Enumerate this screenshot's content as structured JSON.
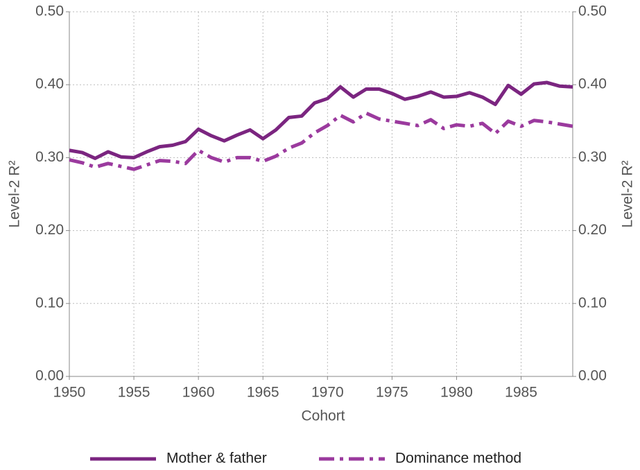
{
  "chart_data": {
    "type": "line",
    "x": [
      1950,
      1951,
      1952,
      1953,
      1954,
      1955,
      1956,
      1957,
      1958,
      1959,
      1960,
      1961,
      1962,
      1963,
      1964,
      1965,
      1966,
      1967,
      1968,
      1969,
      1970,
      1971,
      1972,
      1973,
      1974,
      1975,
      1976,
      1977,
      1978,
      1979,
      1980,
      1981,
      1982,
      1983,
      1984,
      1985,
      1986,
      1987,
      1988,
      1989
    ],
    "series": [
      {
        "name": "Mother & father",
        "color": "#7b2580",
        "dash": "solid",
        "values": [
          0.31,
          0.307,
          0.299,
          0.308,
          0.301,
          0.3,
          0.308,
          0.315,
          0.317,
          0.322,
          0.339,
          0.33,
          0.323,
          0.331,
          0.338,
          0.326,
          0.338,
          0.355,
          0.357,
          0.375,
          0.381,
          0.397,
          0.383,
          0.394,
          0.394,
          0.388,
          0.38,
          0.384,
          0.39,
          0.383,
          0.384,
          0.389,
          0.383,
          0.373,
          0.399,
          0.387,
          0.401,
          0.403,
          0.398,
          0.397
        ]
      },
      {
        "name": "Dominance method",
        "color": "#9b3a9e",
        "dash": "dashdot",
        "values": [
          0.297,
          0.293,
          0.287,
          0.292,
          0.288,
          0.284,
          0.29,
          0.296,
          0.295,
          0.292,
          0.31,
          0.3,
          0.294,
          0.3,
          0.3,
          0.295,
          0.302,
          0.313,
          0.32,
          0.334,
          0.344,
          0.358,
          0.349,
          0.361,
          0.353,
          0.35,
          0.347,
          0.344,
          0.352,
          0.34,
          0.345,
          0.343,
          0.347,
          0.333,
          0.35,
          0.343,
          0.351,
          0.349,
          0.346,
          0.343
        ]
      }
    ],
    "xlabel": "Cohort",
    "ylabel": "Level-2 R²",
    "y2label": "Level-2 R²",
    "xlim": [
      1950,
      1989
    ],
    "xticks": [
      1950,
      1955,
      1960,
      1965,
      1970,
      1975,
      1980,
      1985
    ],
    "ylim": [
      0,
      0.5
    ],
    "yticks": [
      {
        "value": 0,
        "label": "0.00"
      },
      {
        "value": 0.1,
        "label": "0.10"
      },
      {
        "value": 0.2,
        "label": "0.20"
      },
      {
        "value": 0.3,
        "label": "0.30"
      },
      {
        "value": 0.4,
        "label": "0.40"
      },
      {
        "value": 0.5,
        "label": "0.50"
      }
    ],
    "y2lim": [
      0,
      0.5
    ],
    "y2ticks": [
      {
        "value": 0,
        "label": "0.00"
      },
      {
        "value": 0.1,
        "label": "0.10"
      },
      {
        "value": 0.2,
        "label": "0.20"
      },
      {
        "value": 0.3,
        "label": "0.30"
      },
      {
        "value": 0.4,
        "label": "0.40"
      },
      {
        "value": 0.5,
        "label": "0.50"
      }
    ],
    "grid": true,
    "legend": "bottom"
  }
}
